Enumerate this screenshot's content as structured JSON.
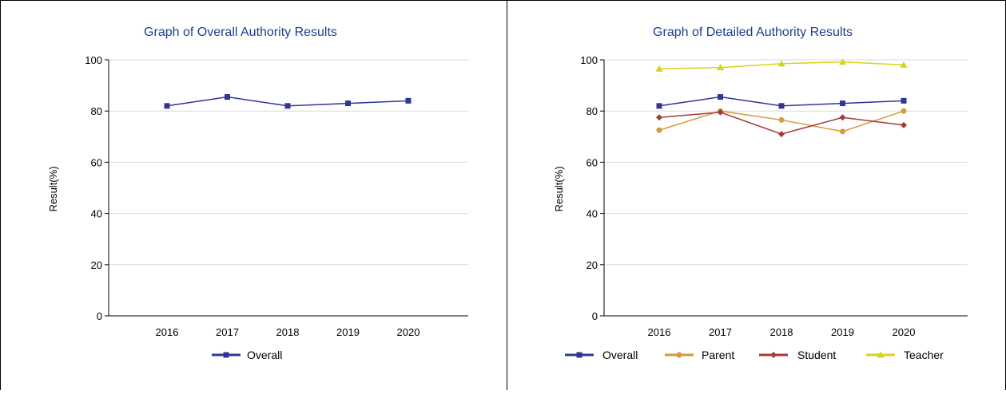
{
  "colors": {
    "overall": "#2f3699",
    "parent": "#d59a3c",
    "student": "#a33a3a",
    "teacher": "#d8d21c",
    "title": "#1f3f8f",
    "grid": "#d9d9d9",
    "axis": "#000000"
  },
  "chart_data": [
    {
      "type": "line",
      "title": "Graph of Overall Authority Results",
      "xlabel": "",
      "ylabel": "Result(%)",
      "categories": [
        "2016",
        "2017",
        "2018",
        "2019",
        "2020"
      ],
      "ylim": [
        0,
        100
      ],
      "yticks": [
        0,
        20,
        40,
        60,
        80,
        100
      ],
      "grid": true,
      "legend_position": "bottom",
      "series": [
        {
          "name": "Overall",
          "color_key": "overall",
          "marker": "square",
          "values": [
            82,
            85.5,
            82,
            83,
            84
          ]
        }
      ]
    },
    {
      "type": "line",
      "title": "Graph of Detailed Authority Results",
      "xlabel": "",
      "ylabel": "Result(%)",
      "categories": [
        "2016",
        "2017",
        "2018",
        "2019",
        "2020"
      ],
      "ylim": [
        0,
        100
      ],
      "yticks": [
        0,
        20,
        40,
        60,
        80,
        100
      ],
      "grid": true,
      "legend_position": "bottom",
      "series": [
        {
          "name": "Overall",
          "color_key": "overall",
          "marker": "square",
          "values": [
            82,
            85.5,
            82,
            83,
            84
          ]
        },
        {
          "name": "Parent",
          "color_key": "parent",
          "marker": "circle",
          "values": [
            72.5,
            80,
            76.5,
            72,
            80
          ]
        },
        {
          "name": "Student",
          "color_key": "student",
          "marker": "diamond",
          "values": [
            77.5,
            79.5,
            71,
            77.5,
            74.5
          ]
        },
        {
          "name": "Teacher",
          "color_key": "teacher",
          "marker": "triangle",
          "values": [
            96.5,
            97,
            98.5,
            99.2,
            98
          ]
        }
      ]
    }
  ]
}
